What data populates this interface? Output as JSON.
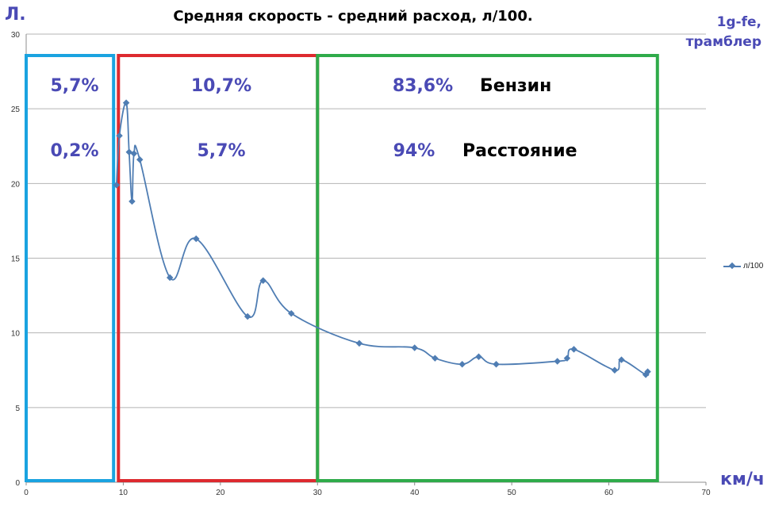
{
  "title": "Средняя скорость - средний расход, л/100.",
  "y_unit_label": "Л.",
  "x_unit_label": "км/ч",
  "note": [
    "1g-fe,",
    "трамблер"
  ],
  "legend_label": "л/100",
  "zones": [
    {
      "name": "zone-1",
      "color": "#1aa3e0",
      "x_from": 0,
      "x_to": 9,
      "fuel_share": "5,7%",
      "distance_share": "0,2%"
    },
    {
      "name": "zone-2",
      "color": "#dd2a2f",
      "x_from": 9.5,
      "x_to": 30,
      "fuel_share": "10,7%",
      "distance_share": "5,7%"
    },
    {
      "name": "zone-3",
      "color": "#2fab4a",
      "x_from": 30,
      "x_to": 65,
      "fuel_share": "83,6%",
      "distance_share": "94%"
    }
  ],
  "row_labels": {
    "fuel": "Бензин",
    "distance": "Расстояние"
  },
  "chart_data": {
    "type": "line",
    "title": "Средняя скорость - средний расход, л/100.",
    "xlabel": "км/ч",
    "ylabel": "Л.",
    "xlim": [
      0,
      70
    ],
    "ylim": [
      0,
      30
    ],
    "x_ticks": [
      0,
      10,
      20,
      30,
      40,
      50,
      60,
      70
    ],
    "y_ticks": [
      0,
      5,
      10,
      15,
      20,
      25,
      30
    ],
    "grid": "horizontal",
    "legend_position": "right",
    "series": [
      {
        "name": "л/100",
        "color": "#4f7db3",
        "x": [
          9.3,
          9.6,
          10.3,
          10.6,
          10.9,
          11.1,
          11.7,
          14.8,
          17.5,
          22.8,
          24.4,
          27.3,
          34.3,
          40.0,
          42.1,
          44.9,
          46.6,
          48.4,
          54.7,
          55.7,
          56.4,
          60.6,
          61.3,
          63.8,
          64.0
        ],
        "y": [
          19.9,
          23.2,
          25.4,
          22.1,
          18.8,
          22.0,
          21.6,
          13.7,
          16.3,
          11.1,
          13.5,
          11.3,
          9.3,
          9.0,
          8.3,
          7.9,
          8.4,
          7.9,
          8.1,
          8.3,
          8.9,
          7.5,
          8.2,
          7.2,
          7.4
        ]
      }
    ]
  }
}
